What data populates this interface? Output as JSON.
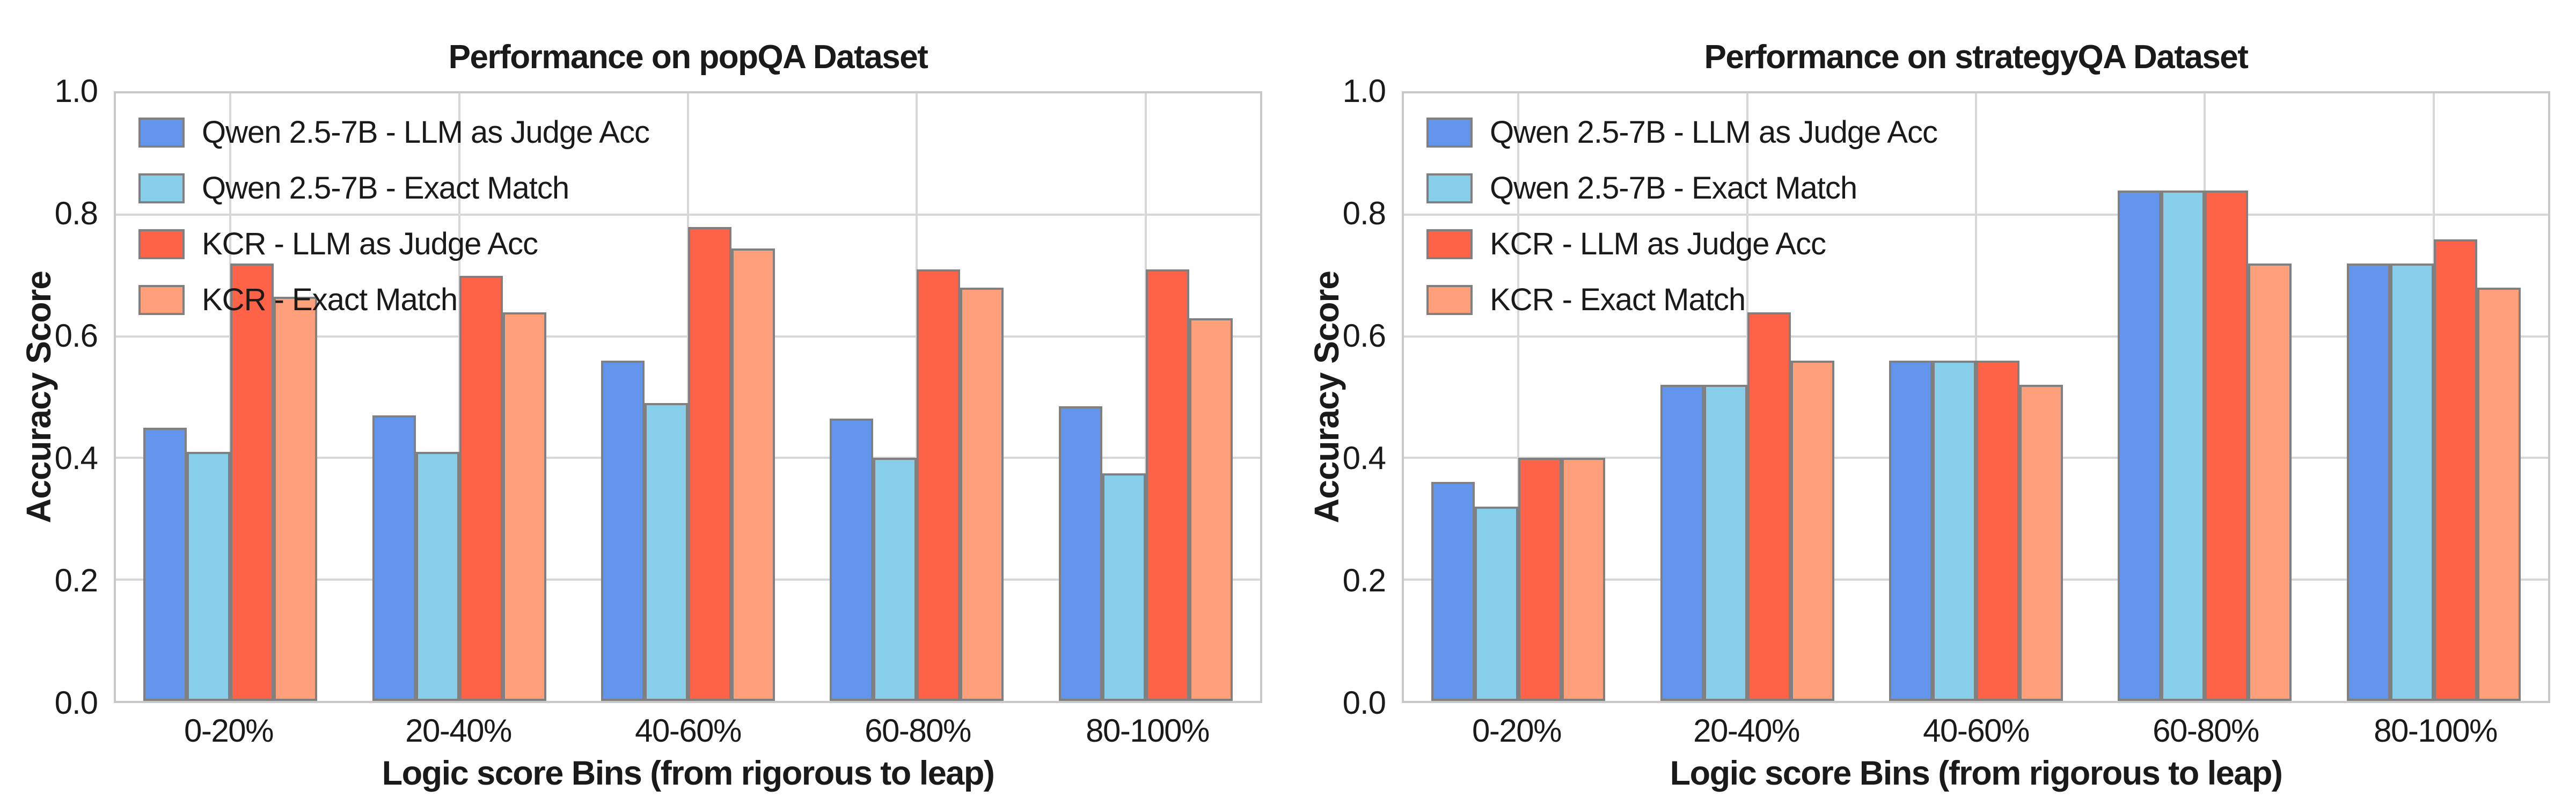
{
  "page": {
    "background": "#ffffff",
    "text_color": "#1a1a1a"
  },
  "style": {
    "grid_color": "#d7d7d7",
    "spine_color": "#c8c8c8",
    "bar_edge_color": "#808080",
    "blue": "#6495ED",
    "light_blue": "#87CEEB",
    "red": "#FF6347",
    "salmon": "#FFA07A"
  },
  "chart_data": [
    {
      "type": "bar",
      "title": "Performance on popQA Dataset",
      "xlabel": "Logic score Bins (from rigorous to leap)",
      "ylabel": "Accuracy Score",
      "ylim": [
        0.0,
        1.0
      ],
      "yticks": [
        "0.0",
        "0.2",
        "0.4",
        "0.6",
        "0.8",
        "1.0"
      ],
      "grid": true,
      "legend_position": "upper-left",
      "categories": [
        "0-20%",
        "20-40%",
        "40-60%",
        "60-80%",
        "80-100%"
      ],
      "series": [
        {
          "name": "Qwen 2.5-7B - LLM as Judge Acc",
          "color": "#6495ED",
          "values": [
            0.45,
            0.47,
            0.56,
            0.465,
            0.485
          ]
        },
        {
          "name": "Qwen 2.5-7B - Exact Match",
          "color": "#87CEEB",
          "values": [
            0.41,
            0.41,
            0.49,
            0.4,
            0.375
          ]
        },
        {
          "name": "KCR - LLM as Judge Acc",
          "color": "#FF6347",
          "values": [
            0.72,
            0.7,
            0.78,
            0.71,
            0.71
          ]
        },
        {
          "name": "KCR - Exact Match",
          "color": "#FFA07A",
          "values": [
            0.665,
            0.64,
            0.745,
            0.68,
            0.63
          ]
        }
      ]
    },
    {
      "type": "bar",
      "title": "Performance on strategyQA Dataset",
      "xlabel": "Logic score Bins (from rigorous to leap)",
      "ylabel": "Accuracy Score",
      "ylim": [
        0.0,
        1.0
      ],
      "yticks": [
        "0.0",
        "0.2",
        "0.4",
        "0.6",
        "0.8",
        "1.0"
      ],
      "grid": true,
      "legend_position": "upper-left",
      "categories": [
        "0-20%",
        "20-40%",
        "40-60%",
        "60-80%",
        "80-100%"
      ],
      "series": [
        {
          "name": "Qwen 2.5-7B - LLM as Judge Acc",
          "color": "#6495ED",
          "values": [
            0.36,
            0.52,
            0.56,
            0.84,
            0.72
          ]
        },
        {
          "name": "Qwen 2.5-7B - Exact Match",
          "color": "#87CEEB",
          "values": [
            0.32,
            0.52,
            0.56,
            0.84,
            0.72
          ]
        },
        {
          "name": "KCR - LLM as Judge Acc",
          "color": "#FF6347",
          "values": [
            0.4,
            0.64,
            0.56,
            0.84,
            0.76
          ]
        },
        {
          "name": "KCR - Exact Match",
          "color": "#FFA07A",
          "values": [
            0.4,
            0.56,
            0.52,
            0.72,
            0.68
          ]
        }
      ]
    }
  ]
}
